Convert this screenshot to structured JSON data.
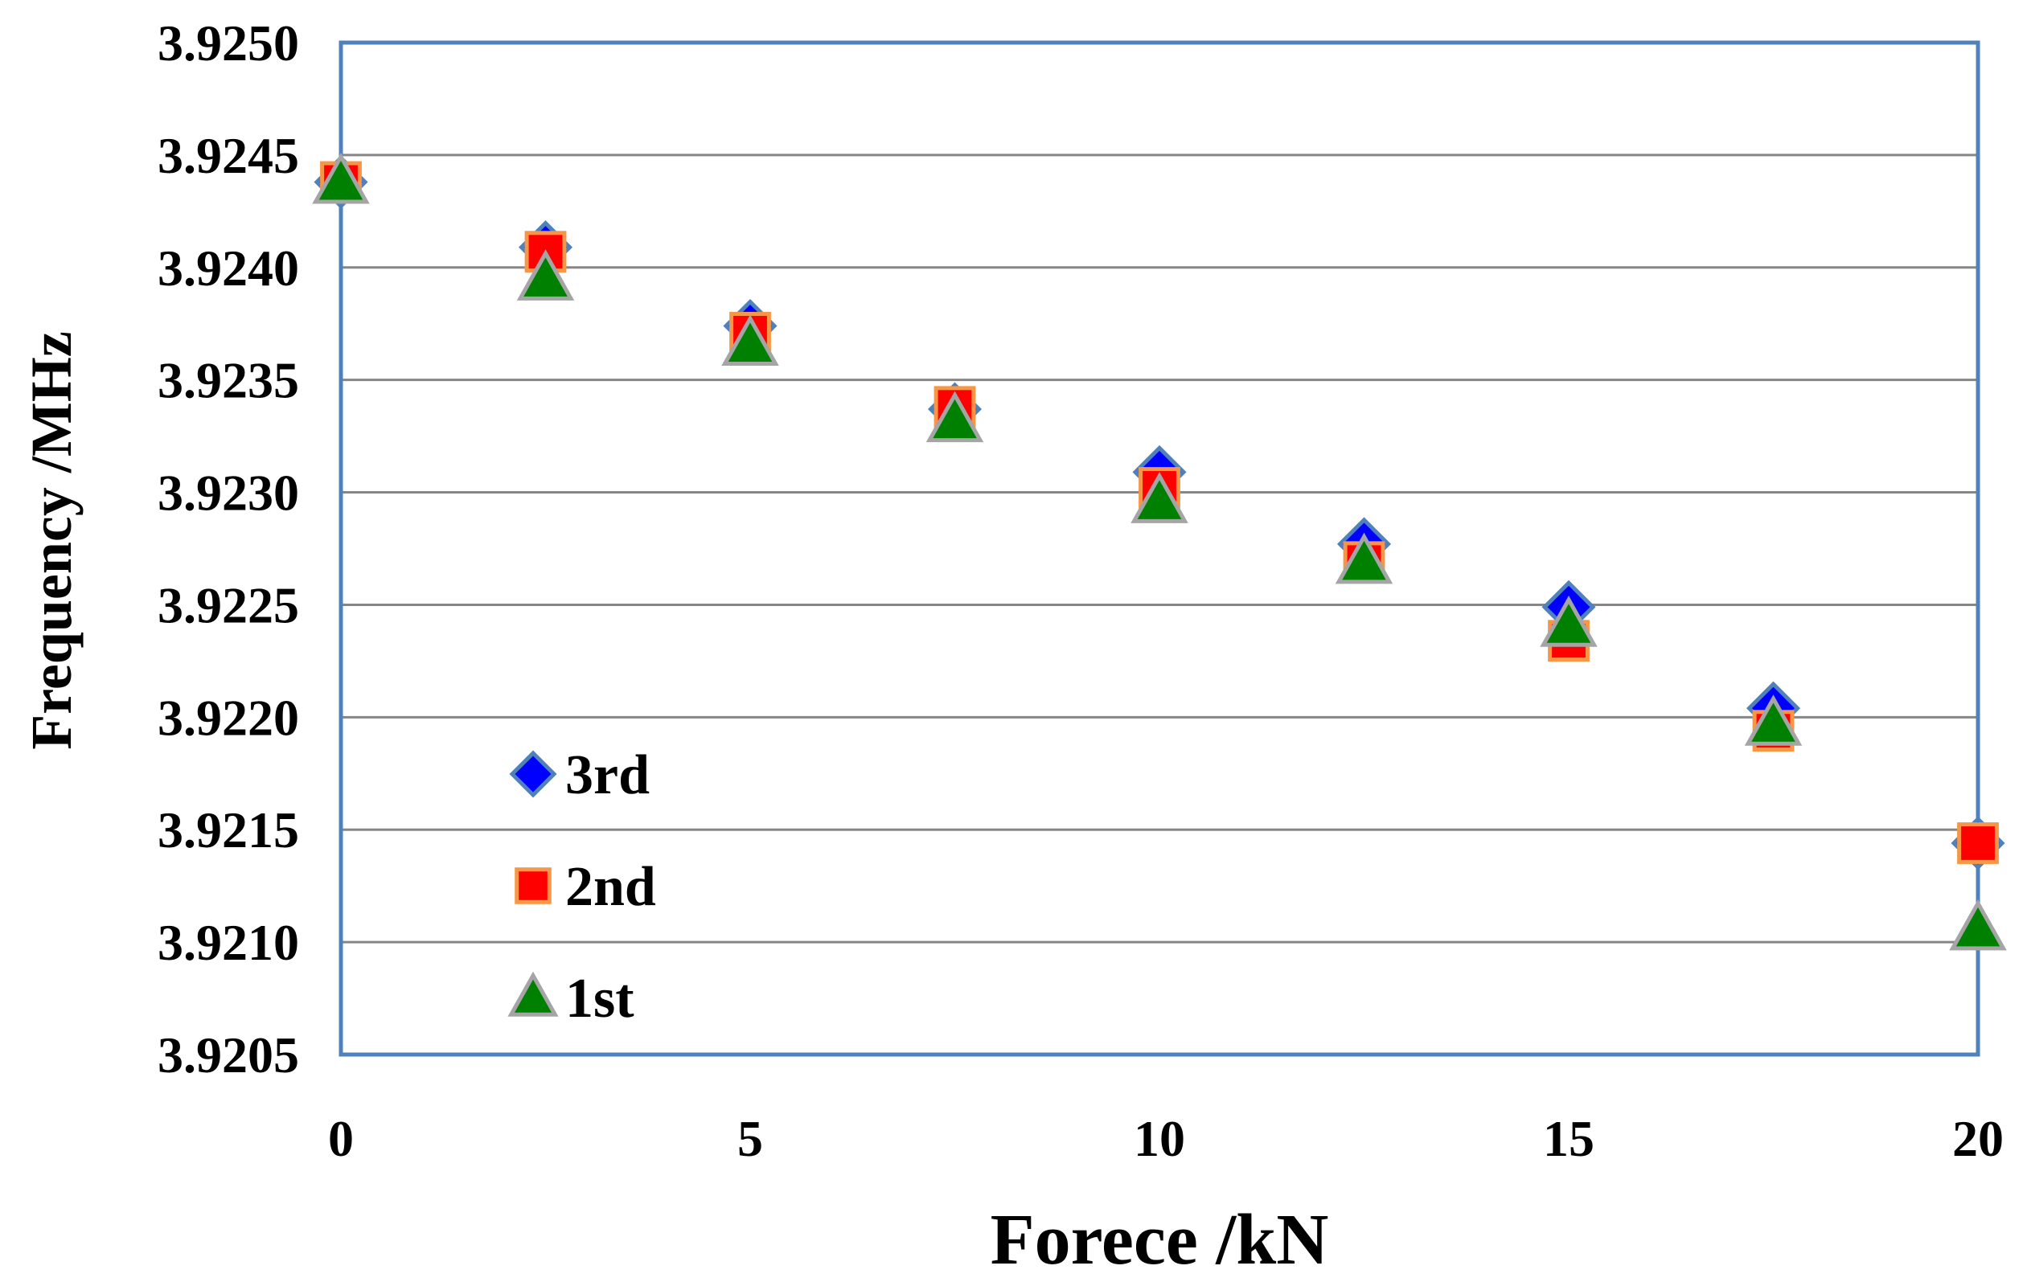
{
  "chart_data": {
    "type": "scatter",
    "title": "",
    "xlabel": "Forece /kN",
    "ylabel": "Frequency /MHz",
    "xlim": [
      0,
      20
    ],
    "ylim": [
      3.9205,
      3.925
    ],
    "xticks": [
      "0",
      "5",
      "10",
      "15",
      "20"
    ],
    "xtick_values": [
      0,
      5,
      10,
      15,
      20
    ],
    "yticks": [
      "3.9250",
      "3.9245",
      "3.9240",
      "3.9235",
      "3.9230",
      "3.9225",
      "3.9220",
      "3.9215",
      "3.9210",
      "3.9205"
    ],
    "ytick_values": [
      3.925,
      3.9245,
      3.924,
      3.9235,
      3.923,
      3.9225,
      3.922,
      3.9215,
      3.921,
      3.9205
    ],
    "grid": "horizontal",
    "legend_position": "bottom-left",
    "series": [
      {
        "name": "3rd",
        "marker": "diamond",
        "color": "#0000ff",
        "edge_color": "#4f81bd",
        "x": [
          0,
          2.5,
          5,
          7.5,
          10,
          12.5,
          15,
          17.5,
          20
        ],
        "y": [
          3.92438,
          3.92409,
          3.92374,
          3.92337,
          3.92309,
          3.92277,
          3.92249,
          3.92204,
          3.92144
        ]
      },
      {
        "name": "2nd",
        "marker": "square",
        "color": "#ff0000",
        "edge_color": "#f79646",
        "x": [
          0,
          2.5,
          5,
          7.5,
          10,
          12.5,
          15,
          17.5,
          20
        ],
        "y": [
          3.92438,
          3.92407,
          3.92371,
          3.92338,
          3.92302,
          3.92269,
          3.92234,
          3.92194,
          3.92144
        ]
      },
      {
        "name": "1st",
        "marker": "triangle",
        "color": "#008000",
        "edge_color": "#a5a5a5",
        "x": [
          0,
          2.5,
          5,
          7.5,
          10,
          12.5,
          15,
          17.5,
          20
        ],
        "y": [
          3.92438,
          3.92395,
          3.92366,
          3.92332,
          3.92296,
          3.92269,
          3.92241,
          3.92197,
          3.92106
        ]
      }
    ]
  },
  "colors": {
    "plot_border": "#4f81bd",
    "gridline": "#868686"
  }
}
